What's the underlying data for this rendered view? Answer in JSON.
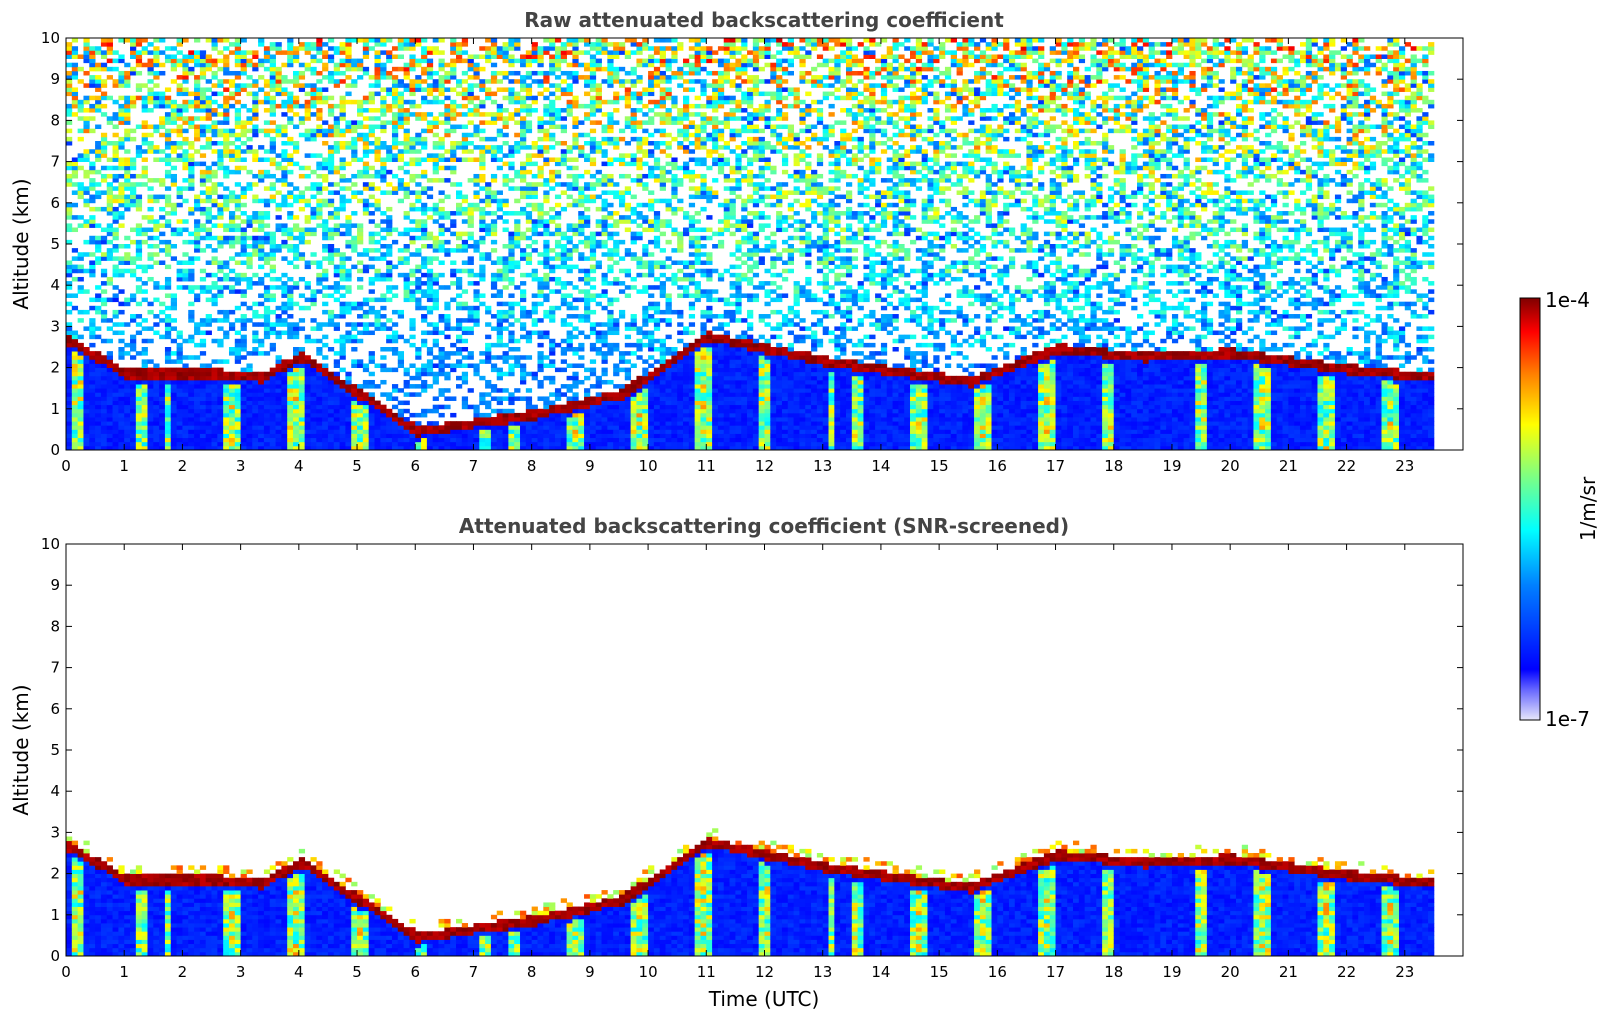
{
  "chart_data": [
    {
      "type": "heatmap",
      "title": "Raw attenuated backscattering coefficient",
      "xlabel": "",
      "ylabel": "Altitude (km)",
      "xlim": [
        0,
        24
      ],
      "ylim": [
        0,
        10
      ],
      "x_ticks": [
        "0",
        "1",
        "2",
        "3",
        "4",
        "5",
        "6",
        "7",
        "8",
        "9",
        "10",
        "11",
        "12",
        "13",
        "14",
        "15",
        "16",
        "17",
        "18",
        "19",
        "20",
        "21",
        "22",
        "23"
      ],
      "y_ticks": [
        "0",
        "1",
        "2",
        "3",
        "4",
        "5",
        "6",
        "7",
        "8",
        "9",
        "10"
      ],
      "data_time_range": [
        0,
        23.5
      ],
      "grid": false,
      "features": {
        "cloud_base_layer": [
          {
            "t": 0.0,
            "alt": 2.6
          },
          {
            "t": 1.0,
            "alt": 1.8
          },
          {
            "t": 2.5,
            "alt": 1.8
          },
          {
            "t": 3.3,
            "alt": 1.7
          },
          {
            "t": 4.0,
            "alt": 2.2
          },
          {
            "t": 6.0,
            "alt": 0.4
          },
          {
            "t": 8.0,
            "alt": 0.8
          },
          {
            "t": 9.5,
            "alt": 1.3
          },
          {
            "t": 11.0,
            "alt": 2.7
          },
          {
            "t": 13.0,
            "alt": 2.1
          },
          {
            "t": 15.5,
            "alt": 1.6
          },
          {
            "t": 17.0,
            "alt": 2.4
          },
          {
            "t": 18.5,
            "alt": 2.2
          },
          {
            "t": 20.0,
            "alt": 2.3
          },
          {
            "t": 22.0,
            "alt": 1.9
          },
          {
            "t": 23.5,
            "alt": 1.7
          }
        ]
      }
    },
    {
      "type": "heatmap",
      "title": "Attenuated backscattering coefficient (SNR-screened)",
      "xlabel": "Time (UTC)",
      "ylabel": "Altitude (km)",
      "xlim": [
        0,
        24
      ],
      "ylim": [
        0,
        10
      ],
      "x_ticks": [
        "0",
        "1",
        "2",
        "3",
        "4",
        "5",
        "6",
        "7",
        "8",
        "9",
        "10",
        "11",
        "12",
        "13",
        "14",
        "15",
        "16",
        "17",
        "18",
        "19",
        "20",
        "21",
        "22",
        "23"
      ],
      "y_ticks": [
        "0",
        "1",
        "2",
        "3",
        "4",
        "5",
        "6",
        "7",
        "8",
        "9",
        "10"
      ],
      "data_time_range": [
        0,
        23.5
      ],
      "grid": false
    }
  ],
  "colorbar": {
    "label": "1/m/sr",
    "min_label": "1e-7",
    "max_label": "1e-4",
    "scale": "log",
    "colormap": "jet",
    "colors": [
      "#e6e6fa",
      "#0000ff",
      "#00ffff",
      "#ffff00",
      "#ff0000",
      "#800000"
    ]
  }
}
